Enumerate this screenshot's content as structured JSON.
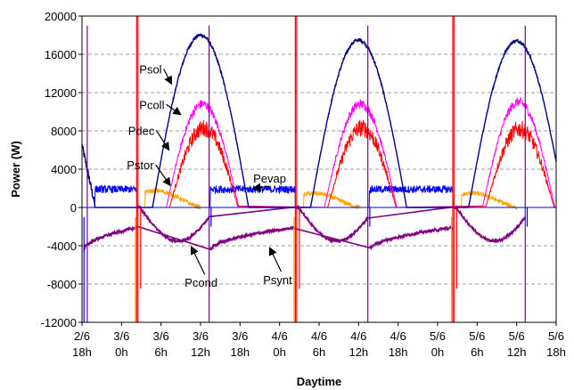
{
  "chart_data": {
    "type": "line",
    "title": "",
    "xlabel": "Daytime",
    "ylabel": "Power (W)",
    "ylim": [
      -12000,
      20000
    ],
    "xlim_hours": [
      0,
      72
    ],
    "grid": "horizontal dashed",
    "legend": "none (inline annotations)",
    "y_ticks": [
      "20000",
      "16000",
      "12000",
      "8000",
      "4000",
      "0",
      "-4000",
      "-8000",
      "-12000"
    ],
    "x_ticks": [
      {
        "date": "2/6",
        "time": "18h"
      },
      {
        "date": "3/6",
        "time": "0h"
      },
      {
        "date": "3/6",
        "time": "6h"
      },
      {
        "date": "3/6",
        "time": "12h"
      },
      {
        "date": "3/6",
        "time": "18h"
      },
      {
        "date": "4/6",
        "time": "0h"
      },
      {
        "date": "4/6",
        "time": "6h"
      },
      {
        "date": "4/6",
        "time": "12h"
      },
      {
        "date": "4/6",
        "time": "18h"
      },
      {
        "date": "5/6",
        "time": "0h"
      },
      {
        "date": "5/6",
        "time": "6h"
      },
      {
        "date": "5/6",
        "time": "12h"
      },
      {
        "date": "5/6",
        "time": "18h"
      }
    ],
    "annotations": [
      {
        "label": "Psol",
        "series": "Psol"
      },
      {
        "label": "Pcoll",
        "series": "Pcoll"
      },
      {
        "label": "Pdec",
        "series": "Pdec"
      },
      {
        "label": "Pstor",
        "series": "Pstor"
      },
      {
        "label": "Pevap",
        "series": "Pevap"
      },
      {
        "label": "Pcond",
        "series": "Pcond"
      },
      {
        "label": "Psynt",
        "series": "Psynt"
      }
    ],
    "series": [
      {
        "name": "Psol",
        "color": "#000080",
        "peaks_W": [
          18000,
          17500,
          17400
        ]
      },
      {
        "name": "Pcoll",
        "color": "#ff00ff",
        "peaks_W": [
          10800,
          10800,
          11000
        ]
      },
      {
        "name": "Pdec",
        "color": "#ff0000",
        "peaks_W": [
          8300,
          8300,
          8200
        ]
      },
      {
        "name": "Pstor",
        "color": "#ffa500",
        "peaks_W": [
          2600,
          2200,
          2200
        ]
      },
      {
        "name": "Pevap",
        "color": "#0000ff",
        "night_level_W": 1900
      },
      {
        "name": "Pcond",
        "color": "#800080",
        "min_W": -3500
      },
      {
        "name": "Psynt",
        "color": "#800080",
        "night_range_W": [
          -4500,
          -2000
        ]
      }
    ]
  }
}
